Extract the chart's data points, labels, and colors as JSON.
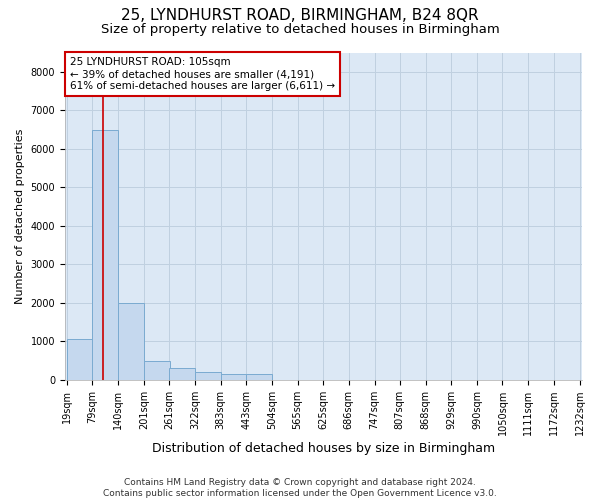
{
  "title1": "25, LYNDHURST ROAD, BIRMINGHAM, B24 8QR",
  "title2": "Size of property relative to detached houses in Birmingham",
  "xlabel": "Distribution of detached houses by size in Birmingham",
  "ylabel": "Number of detached properties",
  "bar_left_edges": [
    19,
    79,
    140,
    201,
    261,
    322,
    383,
    443,
    504,
    565,
    625,
    686,
    747,
    807,
    868,
    929,
    990,
    1050,
    1111,
    1172
  ],
  "bar_heights": [
    1050,
    6500,
    2000,
    500,
    300,
    200,
    150,
    150,
    0,
    0,
    0,
    0,
    0,
    0,
    0,
    0,
    0,
    0,
    0,
    0
  ],
  "bin_width": 61,
  "bar_color": "#c5d8ee",
  "bar_edge_color": "#7aaad0",
  "property_size": 105,
  "property_line_color": "#cc0000",
  "annotation_text": "25 LYNDHURST ROAD: 105sqm\n← 39% of detached houses are smaller (4,191)\n61% of semi-detached houses are larger (6,611) →",
  "annotation_box_color": "#ffffff",
  "annotation_box_edge_color": "#cc0000",
  "ylim": [
    0,
    8500
  ],
  "yticks": [
    0,
    1000,
    2000,
    3000,
    4000,
    5000,
    6000,
    7000,
    8000
  ],
  "tick_labels": [
    "19sqm",
    "79sqm",
    "140sqm",
    "201sqm",
    "261sqm",
    "322sqm",
    "383sqm",
    "443sqm",
    "504sqm",
    "565sqm",
    "625sqm",
    "686sqm",
    "747sqm",
    "807sqm",
    "868sqm",
    "929sqm",
    "990sqm",
    "1050sqm",
    "1111sqm",
    "1172sqm",
    "1232sqm"
  ],
  "grid_color": "#c0d0e0",
  "bg_color": "#dce8f5",
  "footer_text": "Contains HM Land Registry data © Crown copyright and database right 2024.\nContains public sector information licensed under the Open Government Licence v3.0.",
  "title1_fontsize": 11,
  "title2_fontsize": 9.5,
  "xlabel_fontsize": 9,
  "ylabel_fontsize": 8,
  "tick_fontsize": 7,
  "footer_fontsize": 6.5,
  "annotation_fontsize": 7.5
}
